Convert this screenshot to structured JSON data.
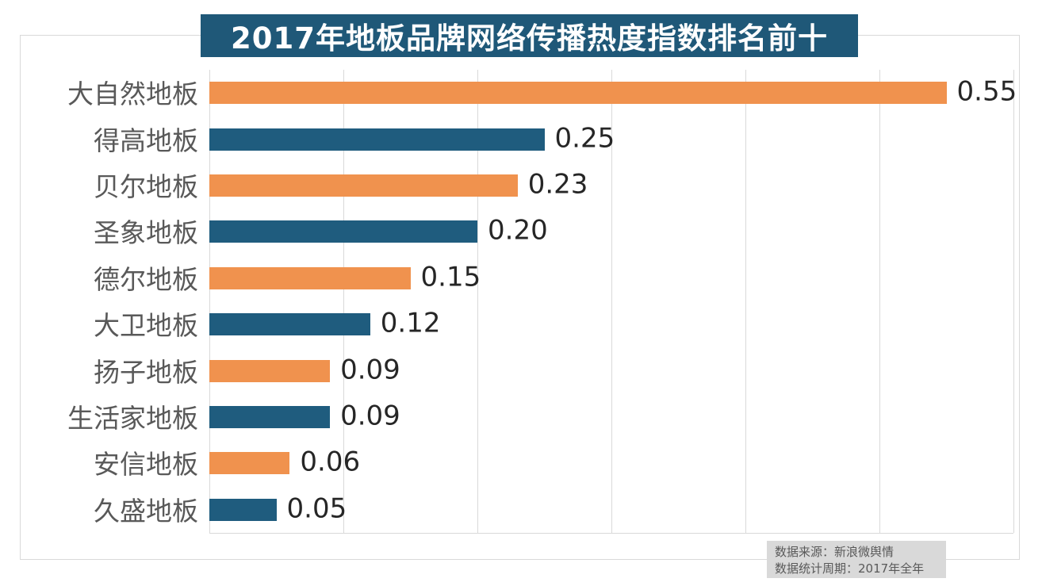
{
  "chart_data": {
    "type": "bar",
    "orientation": "horizontal",
    "title": "2017年地板品牌网络传播热度指数排名前十",
    "categories": [
      "大自然地板",
      "得高地板",
      "贝尔地板",
      "圣象地板",
      "德尔地板",
      "大卫地板",
      "扬子地板",
      "生活家地板",
      "安信地板",
      "久盛地板"
    ],
    "values": [
      0.55,
      0.25,
      0.23,
      0.2,
      0.15,
      0.12,
      0.09,
      0.09,
      0.06,
      0.05
    ],
    "value_labels": [
      "0.55",
      "0.25",
      "0.23",
      "0.20",
      "0.15",
      "0.12",
      "0.09",
      "0.09",
      "0.06",
      "0.05"
    ],
    "bar_colors": [
      "#f0924e",
      "#1f5c7e",
      "#f0924e",
      "#1f5c7e",
      "#f0924e",
      "#1f5c7e",
      "#f0924e",
      "#1f5c7e",
      "#f0924e",
      "#1f5c7e"
    ],
    "xlabel": "",
    "ylabel": "",
    "xlim": [
      0,
      0.6
    ],
    "grid_interval": 0.1,
    "grid": "vertical-only",
    "legend": "none",
    "tick_labels_shown": false
  },
  "colors": {
    "banner_bg": "#1f5878",
    "banner_text": "#ffffff",
    "bar_orange": "#f0924e",
    "bar_blue": "#1f5c7e",
    "grid_line": "#d9d9d9",
    "frame_border": "#d9d9d9",
    "category_text": "#595959",
    "value_text": "#262626",
    "source_bg": "#d9d9d9",
    "source_text": "#595959"
  },
  "source_note": {
    "line1": "数据来源：新浪微舆情",
    "line2": "数据统计周期：2017年全年"
  }
}
